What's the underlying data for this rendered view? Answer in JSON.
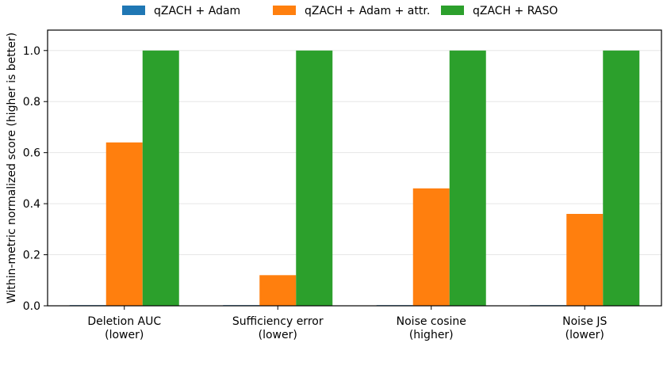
{
  "chart_data": {
    "type": "bar",
    "title": "",
    "xlabel": "",
    "ylabel": "Within-metric normalized score (higher is better)",
    "ylim": [
      0,
      1.08
    ],
    "yticks": [
      0.0,
      0.2,
      0.4,
      0.6,
      0.8,
      1.0
    ],
    "ytick_labels": [
      "0.0",
      "0.2",
      "0.4",
      "0.6",
      "0.8",
      "1.0"
    ],
    "grid": "y",
    "legend_position": "top-center",
    "categories": [
      [
        "Deletion AUC",
        "(lower)"
      ],
      [
        "Sufficiency error",
        "(lower)"
      ],
      [
        "Noise cosine",
        "(higher)"
      ],
      [
        "Noise JS",
        "(lower)"
      ]
    ],
    "series": [
      {
        "name": "qZACH + Adam",
        "color": "#1f77b4",
        "values": [
          0.0,
          0.0,
          0.0,
          0.0
        ]
      },
      {
        "name": "qZACH + Adam + attr.",
        "color": "#ff7f0e",
        "values": [
          0.64,
          0.12,
          0.46,
          0.36
        ]
      },
      {
        "name": "qZACH + RASO",
        "color": "#2ca02c",
        "values": [
          1.0,
          1.0,
          1.0,
          1.0
        ]
      }
    ]
  }
}
